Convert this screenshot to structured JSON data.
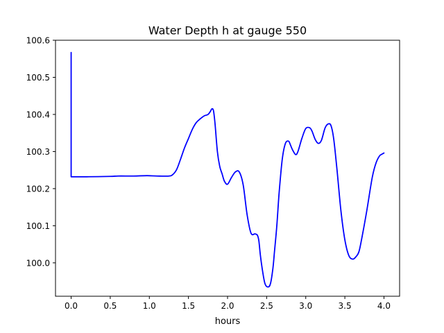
{
  "chart_data": {
    "type": "line",
    "title": "Water Depth h at gauge 550",
    "xlabel": "hours",
    "ylabel": "",
    "xlim": [
      -0.2,
      4.2
    ],
    "ylim": [
      99.91,
      100.6
    ],
    "xticks": [
      0.0,
      0.5,
      1.0,
      1.5,
      2.0,
      2.5,
      3.0,
      3.5,
      4.0
    ],
    "xtick_labels": [
      "0.0",
      "0.5",
      "1.0",
      "1.5",
      "2.0",
      "2.5",
      "3.0",
      "3.5",
      "4.0"
    ],
    "yticks": [
      100.0,
      100.1,
      100.2,
      100.3,
      100.4,
      100.5,
      100.6
    ],
    "ytick_labels": [
      "100.0",
      "100.1",
      "100.2",
      "100.3",
      "100.4",
      "100.5",
      "100.6"
    ],
    "grid": false,
    "series": [
      {
        "color": "#0000ff",
        "x": [
          0.0,
          0.0,
          0.0,
          0.2,
          0.5,
          0.6,
          0.8,
          0.97,
          1.1,
          1.25,
          1.3,
          1.35,
          1.4,
          1.45,
          1.5,
          1.55,
          1.6,
          1.65,
          1.7,
          1.75,
          1.78,
          1.8,
          1.82,
          1.84,
          1.87,
          1.9,
          1.93,
          1.96,
          2.0,
          2.05,
          2.1,
          2.15,
          2.2,
          2.25,
          2.3,
          2.35,
          2.38,
          2.4,
          2.42,
          2.45,
          2.48,
          2.52,
          2.55,
          2.58,
          2.6,
          2.63,
          2.66,
          2.7,
          2.74,
          2.78,
          2.8,
          2.83,
          2.87,
          2.9,
          2.95,
          3.0,
          3.05,
          3.08,
          3.12,
          3.16,
          3.2,
          3.25,
          3.3,
          3.33,
          3.36,
          3.4,
          3.45,
          3.5,
          3.55,
          3.6,
          3.64,
          3.68,
          3.72,
          3.78,
          3.85,
          3.9,
          3.95,
          4.0
        ],
        "y": [
          100.232,
          100.567,
          100.232,
          100.232,
          100.233,
          100.234,
          100.234,
          100.235,
          100.234,
          100.234,
          100.238,
          100.252,
          100.28,
          100.31,
          100.335,
          100.36,
          100.378,
          100.388,
          100.396,
          100.4,
          100.408,
          100.415,
          100.41,
          100.375,
          100.3,
          100.26,
          100.24,
          100.22,
          100.212,
          100.23,
          100.245,
          100.245,
          100.21,
          100.13,
          100.08,
          100.078,
          100.075,
          100.06,
          100.02,
          99.975,
          99.943,
          99.935,
          99.945,
          99.985,
          100.03,
          100.1,
          100.19,
          100.28,
          100.322,
          100.328,
          100.32,
          100.305,
          100.292,
          100.3,
          100.335,
          100.362,
          100.364,
          100.355,
          100.333,
          100.322,
          100.33,
          100.365,
          100.375,
          100.365,
          100.33,
          100.25,
          100.14,
          100.062,
          100.02,
          100.01,
          100.016,
          100.03,
          100.07,
          100.14,
          100.23,
          100.27,
          100.29,
          100.296
        ]
      }
    ]
  }
}
